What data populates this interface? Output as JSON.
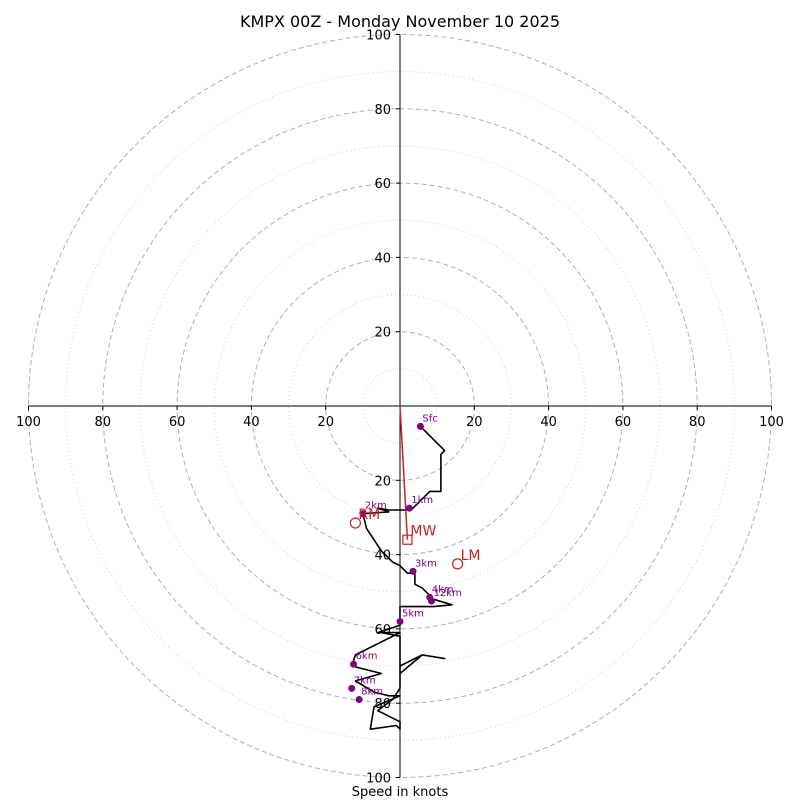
{
  "chart_data": {
    "type": "hodograph",
    "title": "KMPX 00Z - Monday November 10 2025",
    "xlabel": "Speed in knots",
    "ylabel": "",
    "axis_range": [
      -100,
      100
    ],
    "grid": true,
    "rings_major": [
      20,
      40,
      60,
      80,
      100
    ],
    "rings_minor": [
      10,
      30,
      50,
      70,
      90
    ],
    "ticks_x": [
      -100,
      -80,
      -60,
      -40,
      -20,
      20,
      40,
      60,
      80,
      100
    ],
    "ticks_x_labels": [
      "100",
      "80",
      "60",
      "40",
      "20",
      "20",
      "40",
      "60",
      "80",
      "100"
    ],
    "ticks_y_pos": [
      20,
      40,
      60,
      80,
      100
    ],
    "ticks_y_pos_labels": [
      "20",
      "40",
      "60",
      "80",
      "100"
    ],
    "ticks_y_neg": [
      -20,
      -40,
      -60,
      -80,
      -100
    ],
    "ticks_y_neg_labels": [
      "20",
      "40",
      "60",
      "80",
      "100"
    ],
    "profile": [
      [
        6,
        -6
      ],
      [
        12,
        -12
      ],
      [
        11,
        -13
      ],
      [
        11,
        -23
      ],
      [
        8,
        -23
      ],
      [
        7,
        -24
      ],
      [
        5,
        -26
      ],
      [
        3,
        -28
      ],
      [
        -3,
        -28
      ],
      [
        -6,
        -27.5
      ],
      [
        -3,
        -28.5
      ],
      [
        -10,
        -29
      ],
      [
        -9,
        -33
      ],
      [
        -7,
        -36
      ],
      [
        -5,
        -39
      ],
      [
        -2,
        -42
      ],
      [
        0,
        -43
      ],
      [
        2,
        -45
      ],
      [
        4,
        -45
      ],
      [
        4,
        -48
      ],
      [
        6,
        -49
      ],
      [
        8,
        -51
      ],
      [
        8,
        -52
      ],
      [
        9,
        -52
      ],
      [
        14,
        -53.5
      ],
      [
        9,
        -54
      ],
      [
        5,
        -54
      ],
      [
        0,
        -54
      ],
      [
        0,
        -59
      ],
      [
        -6,
        -61
      ],
      [
        0,
        -61
      ],
      [
        -12,
        -67
      ],
      [
        -13,
        -70
      ],
      [
        -5,
        -72
      ],
      [
        -12,
        -74
      ],
      [
        -7,
        -77
      ],
      [
        -3,
        -78
      ],
      [
        0,
        -78
      ],
      [
        -7,
        -81
      ],
      [
        -8,
        -87
      ],
      [
        -1,
        -86
      ],
      [
        0,
        -87
      ],
      [
        0,
        -85
      ],
      [
        -6,
        -82
      ],
      [
        -2,
        -79
      ],
      [
        0,
        -76
      ],
      [
        0,
        -70
      ],
      [
        6,
        -67
      ],
      [
        12,
        -68
      ],
      [
        6,
        -67
      ],
      [
        0,
        -72
      ],
      [
        0,
        -62
      ],
      [
        -5,
        -61
      ]
    ],
    "height_markers": [
      {
        "label": "Sfc",
        "u": 5.5,
        "v": -5.5
      },
      {
        "label": "1km",
        "u": 2.5,
        "v": -27.5
      },
      {
        "label": "2km",
        "u": -10,
        "v": -29
      },
      {
        "label": "3km",
        "u": 3.5,
        "v": -44.5
      },
      {
        "label": "4km",
        "u": 8,
        "v": -51.5
      },
      {
        "label": "12km",
        "u": 8.5,
        "v": -52.5
      },
      {
        "label": "5km",
        "u": 0,
        "v": -58
      },
      {
        "label": "6km",
        "u": -12.5,
        "v": -69.5
      },
      {
        "label": "7km",
        "u": -13,
        "v": -76
      },
      {
        "label": "8km",
        "u": -11,
        "v": -79
      }
    ],
    "motions": [
      {
        "label": "RM",
        "u": -12,
        "v": -31.5,
        "marker": "circle"
      },
      {
        "label": "LM",
        "u": 15.5,
        "v": -42.5,
        "marker": "circle"
      },
      {
        "label": "MW",
        "u": 2,
        "v": -36,
        "marker": "square"
      }
    ],
    "shear_vector": {
      "from": [
        0,
        0
      ],
      "to": [
        2,
        -36
      ]
    },
    "colors": {
      "profile": "#000000",
      "height_marker": "#800080",
      "motion": "#cc2222",
      "grid": "#b0b0b0",
      "axes": "#000000"
    }
  }
}
